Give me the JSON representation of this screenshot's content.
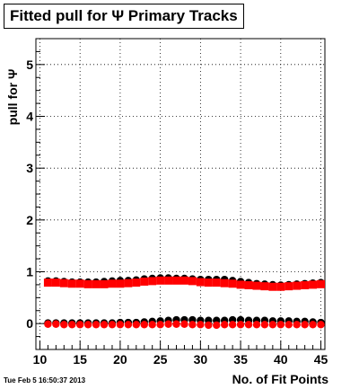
{
  "title": "Fitted pull for Ψ  Primary Tracks",
  "timestamp": "Tue Feb  5 16:50:37 2013",
  "chart_data": {
    "type": "scatter",
    "title": "Fitted pull for Ψ  Primary Tracks",
    "xlabel": "No. of Fit Points",
    "ylabel": "pull for Ψ",
    "xlim": [
      9.5,
      45.5
    ],
    "ylim": [
      -0.5,
      5.5
    ],
    "grid": true,
    "x_ticks": [
      10,
      15,
      20,
      25,
      30,
      35,
      40,
      45
    ],
    "y_ticks": [
      0,
      1,
      2,
      3,
      4,
      5
    ],
    "x": [
      11,
      12,
      13,
      14,
      15,
      16,
      17,
      18,
      19,
      20,
      21,
      22,
      23,
      24,
      25,
      26,
      27,
      28,
      29,
      30,
      31,
      32,
      33,
      34,
      35,
      36,
      37,
      38,
      39,
      40,
      41,
      42,
      43,
      44,
      45
    ],
    "series": [
      {
        "color": "#000000",
        "marker": "circle",
        "values": [
          0.82,
          0.82,
          0.81,
          0.8,
          0.8,
          0.8,
          0.8,
          0.81,
          0.82,
          0.83,
          0.83,
          0.84,
          0.86,
          0.87,
          0.88,
          0.88,
          0.87,
          0.87,
          0.86,
          0.85,
          0.85,
          0.85,
          0.85,
          0.83,
          0.81,
          0.79,
          0.77,
          0.76,
          0.75,
          0.74,
          0.75,
          0.76,
          0.77,
          0.78,
          0.79
        ]
      },
      {
        "color": "#ff0000",
        "marker": "square",
        "values": [
          0.79,
          0.79,
          0.78,
          0.77,
          0.77,
          0.76,
          0.76,
          0.76,
          0.77,
          0.77,
          0.78,
          0.79,
          0.81,
          0.82,
          0.83,
          0.83,
          0.83,
          0.83,
          0.82,
          0.8,
          0.79,
          0.79,
          0.78,
          0.77,
          0.75,
          0.74,
          0.73,
          0.72,
          0.71,
          0.71,
          0.72,
          0.73,
          0.74,
          0.75,
          0.76
        ]
      },
      {
        "color": "#000000",
        "marker": "circle",
        "values": [
          0.01,
          0.01,
          0.01,
          0.01,
          0.01,
          0.01,
          0.01,
          0.01,
          0.01,
          0.02,
          0.02,
          0.02,
          0.03,
          0.04,
          0.05,
          0.06,
          0.07,
          0.07,
          0.07,
          0.06,
          0.06,
          0.06,
          0.06,
          0.07,
          0.07,
          0.06,
          0.06,
          0.06,
          0.05,
          0.05,
          0.05,
          0.04,
          0.04,
          0.03,
          0.02
        ]
      },
      {
        "color": "#ff0000",
        "marker": "circle",
        "values": [
          -0.01,
          -0.01,
          -0.02,
          -0.02,
          -0.02,
          -0.02,
          -0.02,
          -0.02,
          -0.02,
          -0.02,
          -0.02,
          -0.02,
          -0.02,
          -0.02,
          -0.02,
          -0.01,
          -0.01,
          -0.01,
          -0.02,
          -0.02,
          -0.03,
          -0.03,
          -0.02,
          -0.02,
          -0.02,
          -0.02,
          -0.02,
          -0.02,
          -0.02,
          -0.02,
          -0.02,
          -0.02,
          -0.02,
          -0.02,
          -0.02
        ]
      }
    ]
  }
}
